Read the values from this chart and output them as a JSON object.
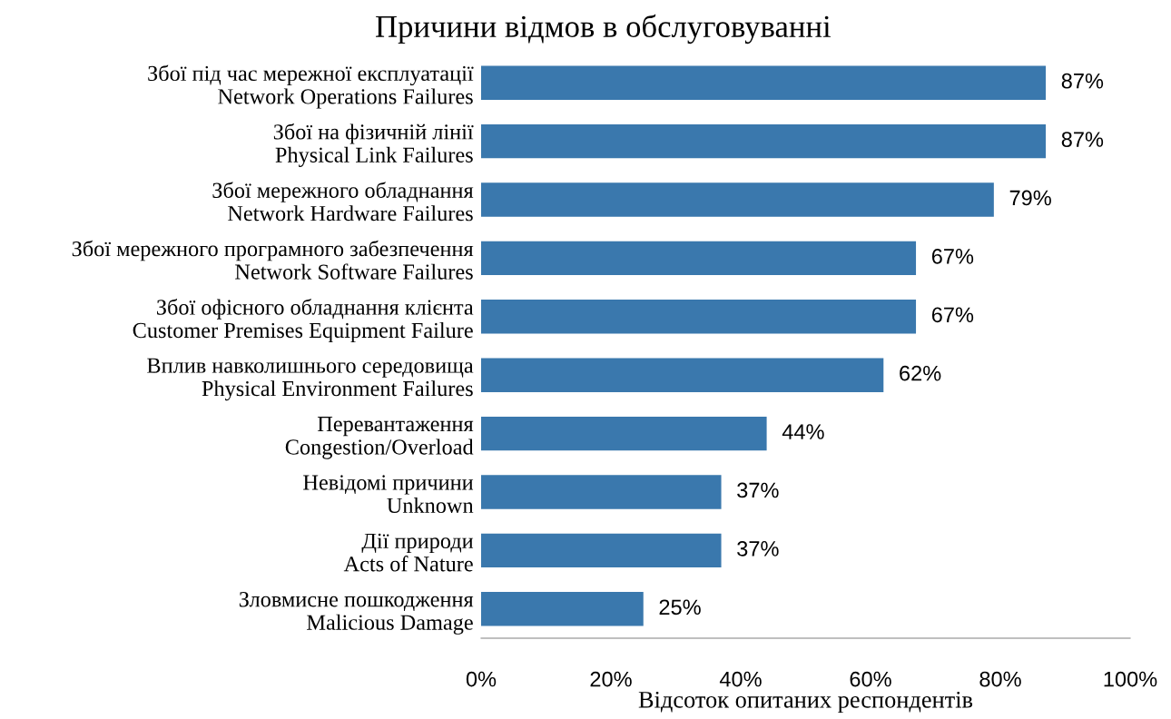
{
  "chart_data": {
    "type": "bar",
    "orientation": "horizontal",
    "title": "Причини відмов в обслуговуванні",
    "xlabel": "Відсоток опитаних респондентів",
    "categories": [
      "Збої під час мережної експлуатації\nNetwork Operations Failures",
      "Збої на фізичній лінії\nPhysical Link Failures",
      "Збої мережного обладнання\nNetwork Hardware Failures",
      "Збої мережного програмного забезпечення\nNetwork Software Failures",
      "Збої офісного обладнання клієнта\nCustomer Premises Equipment Failure",
      "Вплив навколишнього середовища\nPhysical Environment Failures",
      "Перевантаження\nCongestion/Overload",
      "Невідомі причини\nUnknown",
      "Дії природи\nActs of Nature",
      "Зловмисне пошкодження\nMalicious Damage"
    ],
    "values": [
      87,
      87,
      79,
      67,
      67,
      62,
      44,
      37,
      37,
      25
    ],
    "value_labels": [
      "87%",
      "87%",
      "79%",
      "67%",
      "67%",
      "62%",
      "44%",
      "37%",
      "37%",
      "25%"
    ],
    "color": "#3a78ad",
    "xlim": [
      0,
      100
    ],
    "xticks": [
      {
        "value": 0,
        "label": "0%"
      },
      {
        "value": 20,
        "label": "20%"
      },
      {
        "value": 40,
        "label": "40%"
      },
      {
        "value": 60,
        "label": "60%"
      },
      {
        "value": 80,
        "label": "80%"
      },
      {
        "value": 100,
        "label": "100%"
      }
    ],
    "grid": false,
    "legend": false
  }
}
